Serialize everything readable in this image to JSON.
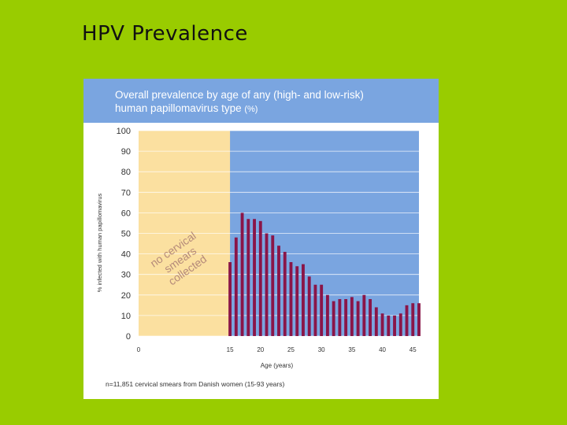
{
  "slide": {
    "title": "HPV Prevalence"
  },
  "figure": {
    "title_main": "Overall prevalence by age of any (high- and low-risk)",
    "title_line2": "human papillomavirus type",
    "title_unit": "(%)",
    "footnote": "n=11,851 cervical smears from Danish women (15-93 years)",
    "shaded_region_label": [
      "no cervical",
      "smears",
      "collected"
    ]
  },
  "colors": {
    "background": "#99cc00",
    "header": "#7aa5e0",
    "plot_area": "#7aa5e0",
    "no_data_region": "#fbe0a0",
    "bars": "#8a1548"
  },
  "chart_data": {
    "type": "bar",
    "xlabel": "Age (years)",
    "ylabel": "% infected with human papillomavirus",
    "xlim": [
      0,
      46
    ],
    "ylim": [
      0,
      100
    ],
    "x_ticks": [
      0,
      15,
      20,
      25,
      30,
      35,
      40,
      45
    ],
    "y_ticks": [
      0,
      10,
      20,
      30,
      40,
      50,
      60,
      70,
      80,
      90,
      100
    ],
    "grid": true,
    "no_data_range": [
      0,
      15
    ],
    "x": [
      15,
      16,
      17,
      18,
      19,
      20,
      21,
      22,
      23,
      24,
      25,
      26,
      27,
      28,
      29,
      30,
      31,
      32,
      33,
      34,
      35,
      36,
      37,
      38,
      39,
      40,
      41,
      42,
      43,
      44,
      45,
      46
    ],
    "values": [
      36,
      48,
      60,
      57,
      57,
      56,
      50,
      49,
      44,
      41,
      36,
      34,
      35,
      29,
      25,
      25,
      20,
      17,
      18,
      18,
      19,
      17,
      20,
      18,
      14,
      11,
      10,
      10,
      11,
      15,
      16,
      16
    ]
  }
}
